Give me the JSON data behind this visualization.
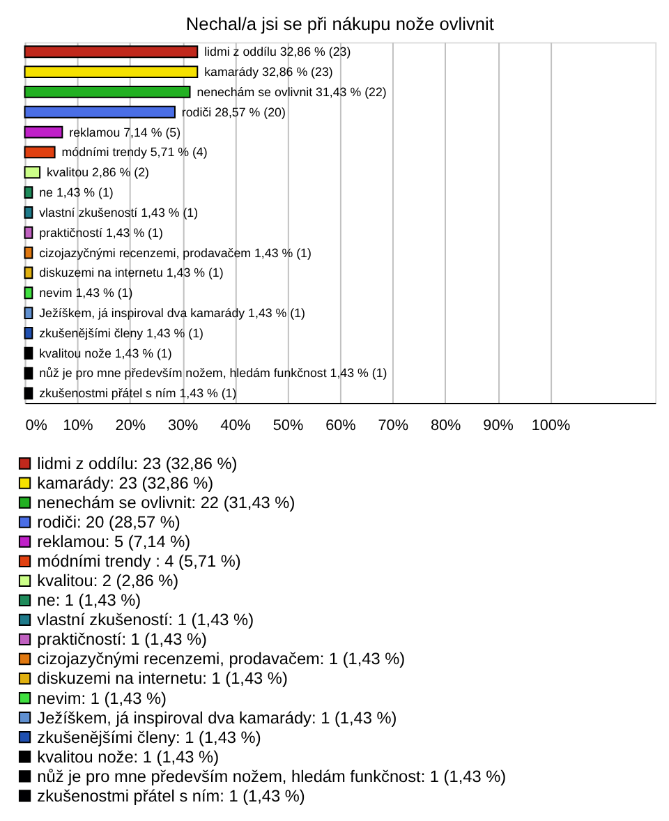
{
  "chart_data": {
    "type": "bar",
    "orientation": "horizontal",
    "title": "Nechal/a jsi se při nákupu nože ovlivnit",
    "categories": [
      null,
      null,
      null,
      null,
      null,
      null,
      null,
      null,
      null,
      null,
      null,
      null,
      null,
      null,
      null,
      null,
      null,
      null
    ],
    "series": [
      {
        "name": "lidmi z oddílu: 23 (32,86 %)",
        "color": "#c0281c",
        "values": [
          32.86,
          null,
          null,
          null,
          null,
          null,
          null,
          null,
          null,
          null,
          null,
          null,
          null,
          null,
          null,
          null,
          null,
          null
        ],
        "value_labels": [
          "lidmi z oddílu 32,86 % (23)",
          null,
          null,
          null,
          null,
          null,
          null,
          null,
          null,
          null,
          null,
          null,
          null,
          null,
          null,
          null,
          null,
          null
        ]
      },
      {
        "name": "kamarády: 23 (32,86 %)",
        "color": "#f5e100",
        "values": [
          null,
          32.86,
          null,
          null,
          null,
          null,
          null,
          null,
          null,
          null,
          null,
          null,
          null,
          null,
          null,
          null,
          null,
          null
        ],
        "value_labels": [
          null,
          "kamarády 32,86 % (23)",
          null,
          null,
          null,
          null,
          null,
          null,
          null,
          null,
          null,
          null,
          null,
          null,
          null,
          null,
          null,
          null
        ]
      },
      {
        "name": "nenechám se ovlivnit: 22 (31,43 %)",
        "color": "#22b022",
        "values": [
          null,
          null,
          31.43,
          null,
          null,
          null,
          null,
          null,
          null,
          null,
          null,
          null,
          null,
          null,
          null,
          null,
          null,
          null
        ],
        "value_labels": [
          null,
          null,
          "nenechám se ovlivnit 31,43 % (22)",
          null,
          null,
          null,
          null,
          null,
          null,
          null,
          null,
          null,
          null,
          null,
          null,
          null,
          null,
          null
        ]
      },
      {
        "name": "rodiči: 20 (28,57 %)",
        "color": "#4a6ee6",
        "values": [
          null,
          null,
          null,
          28.57,
          null,
          null,
          null,
          null,
          null,
          null,
          null,
          null,
          null,
          null,
          null,
          null,
          null,
          null
        ],
        "value_labels": [
          null,
          null,
          null,
          "rodiči 28,57 % (20)",
          null,
          null,
          null,
          null,
          null,
          null,
          null,
          null,
          null,
          null,
          null,
          null,
          null,
          null
        ]
      },
      {
        "name": "reklamou: 5 (7,14 %)",
        "color": "#c020c8",
        "values": [
          null,
          null,
          null,
          null,
          7.14,
          null,
          null,
          null,
          null,
          null,
          null,
          null,
          null,
          null,
          null,
          null,
          null,
          null
        ],
        "value_labels": [
          null,
          null,
          null,
          null,
          "reklamou 7,14 % (5)",
          null,
          null,
          null,
          null,
          null,
          null,
          null,
          null,
          null,
          null,
          null,
          null,
          null
        ]
      },
      {
        "name": "módními trendy : 4 (5,71 %)",
        "color": "#e04010",
        "values": [
          null,
          null,
          null,
          null,
          null,
          5.71,
          null,
          null,
          null,
          null,
          null,
          null,
          null,
          null,
          null,
          null,
          null,
          null
        ],
        "value_labels": [
          null,
          null,
          null,
          null,
          null,
          "módními trendy  5,71 % (4)",
          null,
          null,
          null,
          null,
          null,
          null,
          null,
          null,
          null,
          null,
          null,
          null
        ]
      },
      {
        "name": "kvalitou: 2 (2,86 %)",
        "color": "#ccff88",
        "values": [
          null,
          null,
          null,
          null,
          null,
          null,
          2.86,
          null,
          null,
          null,
          null,
          null,
          null,
          null,
          null,
          null,
          null,
          null
        ],
        "value_labels": [
          null,
          null,
          null,
          null,
          null,
          null,
          "kvalitou 2,86 % (2)",
          null,
          null,
          null,
          null,
          null,
          null,
          null,
          null,
          null,
          null,
          null
        ]
      },
      {
        "name": "ne: 1 (1,43 %)",
        "color": "#1e8a5a",
        "values": [
          null,
          null,
          null,
          null,
          null,
          null,
          null,
          1.43,
          null,
          null,
          null,
          null,
          null,
          null,
          null,
          null,
          null,
          null
        ],
        "value_labels": [
          null,
          null,
          null,
          null,
          null,
          null,
          null,
          "ne 1,43 % (1)",
          null,
          null,
          null,
          null,
          null,
          null,
          null,
          null,
          null,
          null
        ]
      },
      {
        "name": "vlastní zkušeností: 1 (1,43 %)",
        "color": "#1e7a8a",
        "values": [
          null,
          null,
          null,
          null,
          null,
          null,
          null,
          null,
          1.43,
          null,
          null,
          null,
          null,
          null,
          null,
          null,
          null,
          null
        ],
        "value_labels": [
          null,
          null,
          null,
          null,
          null,
          null,
          null,
          null,
          "vlastní zkušeností 1,43 % (1)",
          null,
          null,
          null,
          null,
          null,
          null,
          null,
          null,
          null
        ]
      },
      {
        "name": "praktičností: 1 (1,43 %)",
        "color": "#c060c0",
        "values": [
          null,
          null,
          null,
          null,
          null,
          null,
          null,
          null,
          null,
          1.43,
          null,
          null,
          null,
          null,
          null,
          null,
          null,
          null
        ],
        "value_labels": [
          null,
          null,
          null,
          null,
          null,
          null,
          null,
          null,
          null,
          "praktičností 1,43 % (1)",
          null,
          null,
          null,
          null,
          null,
          null,
          null,
          null
        ]
      },
      {
        "name": "cizojazyčnými recenzemi, prodavačem: 1 (1,43 %)",
        "color": "#e07810",
        "values": [
          null,
          null,
          null,
          null,
          null,
          null,
          null,
          null,
          null,
          null,
          1.43,
          null,
          null,
          null,
          null,
          null,
          null,
          null
        ],
        "value_labels": [
          null,
          null,
          null,
          null,
          null,
          null,
          null,
          null,
          null,
          null,
          "cizojazyčnými recenzemi, prodavačem 1,43 % (1)",
          null,
          null,
          null,
          null,
          null,
          null,
          null
        ]
      },
      {
        "name": "diskuzemi na internetu: 1 (1,43 %)",
        "color": "#e0b010",
        "values": [
          null,
          null,
          null,
          null,
          null,
          null,
          null,
          null,
          null,
          null,
          null,
          1.43,
          null,
          null,
          null,
          null,
          null,
          null
        ],
        "value_labels": [
          null,
          null,
          null,
          null,
          null,
          null,
          null,
          null,
          null,
          null,
          null,
          "diskuzemi na internetu 1,43 % (1)",
          null,
          null,
          null,
          null,
          null,
          null
        ]
      },
      {
        "name": "nevim: 1 (1,43 %)",
        "color": "#40e040",
        "values": [
          null,
          null,
          null,
          null,
          null,
          null,
          null,
          null,
          null,
          null,
          null,
          null,
          1.43,
          null,
          null,
          null,
          null,
          null
        ],
        "value_labels": [
          null,
          null,
          null,
          null,
          null,
          null,
          null,
          null,
          null,
          null,
          null,
          null,
          "nevim 1,43 % (1)",
          null,
          null,
          null,
          null,
          null
        ]
      },
      {
        "name": "Ježíškem, já inspiroval dva kamarády: 1 (1,43 %)",
        "color": "#6090d0",
        "values": [
          null,
          null,
          null,
          null,
          null,
          null,
          null,
          null,
          null,
          null,
          null,
          null,
          null,
          1.43,
          null,
          null,
          null,
          null
        ],
        "value_labels": [
          null,
          null,
          null,
          null,
          null,
          null,
          null,
          null,
          null,
          null,
          null,
          null,
          null,
          "Ježíškem, já inspiroval dva kamarády 1,43 % (1)",
          null,
          null,
          null,
          null
        ]
      },
      {
        "name": "zkušenějšími členy: 1 (1,43 %)",
        "color": "#2050b0",
        "values": [
          null,
          null,
          null,
          null,
          null,
          null,
          null,
          null,
          null,
          null,
          null,
          null,
          null,
          null,
          1.43,
          null,
          null,
          null
        ],
        "value_labels": [
          null,
          null,
          null,
          null,
          null,
          null,
          null,
          null,
          null,
          null,
          null,
          null,
          null,
          null,
          "zkušenějšími členy 1,43 % (1)",
          null,
          null,
          null
        ]
      },
      {
        "name": "kvalitou nože: 1 (1,43 %)",
        "color": "#000000",
        "values": [
          null,
          null,
          null,
          null,
          null,
          null,
          null,
          null,
          null,
          null,
          null,
          null,
          null,
          null,
          null,
          1.43,
          null,
          null
        ],
        "value_labels": [
          null,
          null,
          null,
          null,
          null,
          null,
          null,
          null,
          null,
          null,
          null,
          null,
          null,
          null,
          null,
          "kvalitou nože 1,43 % (1)",
          null,
          null
        ]
      },
      {
        "name": "nůž je pro mne především nožem, hledám funkčnost: 1 (1,43 %)",
        "color": "#000001",
        "values": [
          null,
          null,
          null,
          null,
          null,
          null,
          null,
          null,
          null,
          null,
          null,
          null,
          null,
          null,
          null,
          null,
          1.43,
          null
        ],
        "value_labels": [
          null,
          null,
          null,
          null,
          null,
          null,
          null,
          null,
          null,
          null,
          null,
          null,
          null,
          null,
          null,
          null,
          "nůž je pro mne především nožem, hledám funkčnost 1,43 % (1)",
          null
        ]
      },
      {
        "name": "zkušenostmi přátel s ním: 1 (1,43 %)",
        "color": "#000002",
        "values": [
          null,
          null,
          null,
          null,
          null,
          null,
          null,
          null,
          null,
          null,
          null,
          null,
          null,
          null,
          null,
          null,
          null,
          1.43
        ],
        "value_labels": [
          null,
          null,
          null,
          null,
          null,
          null,
          null,
          null,
          null,
          null,
          null,
          null,
          null,
          null,
          null,
          null,
          null,
          "zkušenostmi přátel s ním 1,43 % (1)"
        ]
      }
    ],
    "xlim": [
      0,
      120
    ],
    "xticks": [
      {
        "value": 0,
        "label": "0%"
      },
      {
        "value": 10,
        "label": "10%"
      },
      {
        "value": 20,
        "label": "20%"
      },
      {
        "value": 30,
        "label": "30%"
      },
      {
        "value": 40,
        "label": "40%"
      },
      {
        "value": 50,
        "label": "50%"
      },
      {
        "value": 60,
        "label": "60%"
      },
      {
        "value": 70,
        "label": "70%"
      },
      {
        "value": 80,
        "label": "80%"
      },
      {
        "value": 90,
        "label": "90%"
      },
      {
        "value": 100,
        "label": "100%"
      }
    ],
    "grid": "x",
    "legend": "bottom",
    "tick_labels": "x"
  }
}
